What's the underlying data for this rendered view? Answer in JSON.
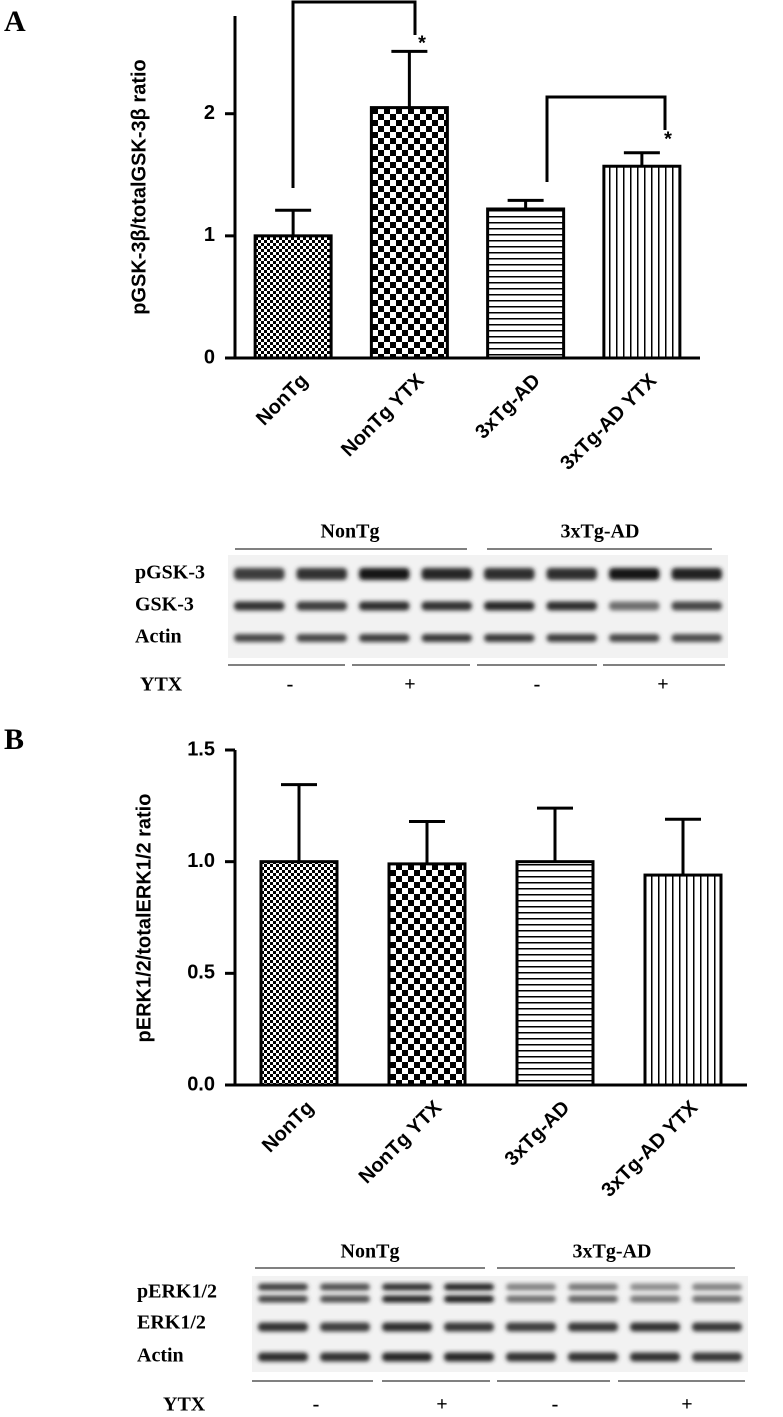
{
  "panels": [
    "A",
    "B"
  ],
  "chart_data": [
    {
      "type": "bar",
      "y_label": "pGSK-3β/totalGSK-3β ratio",
      "categories": [
        "NonTg",
        "NonTg YTX",
        "3xTg-AD",
        "3xTg-AD YTX"
      ],
      "values": [
        1.0,
        2.05,
        1.22,
        1.57
      ],
      "errors": [
        0.21,
        0.46,
        0.07,
        0.11
      ],
      "patterns": [
        "fine-checker",
        "checker",
        "horizontal-lines",
        "vertical-lines"
      ],
      "ylim": [
        0,
        2.8
      ],
      "yticks": [
        0,
        1,
        2
      ],
      "annotations": [
        "*",
        "*"
      ]
    },
    {
      "type": "bar",
      "y_label": "pERK1/2/totalERK1/2 ratio",
      "categories": [
        "NonTg",
        "NonTg YTX",
        "3xTg-AD",
        "3xTg-AD YTX"
      ],
      "values": [
        1.0,
        0.99,
        1.0,
        0.94
      ],
      "errors": [
        0.345,
        0.19,
        0.24,
        0.25
      ],
      "patterns": [
        "fine-checker",
        "checker",
        "horizontal-lines",
        "vertical-lines"
      ],
      "ylim": [
        0,
        1.5
      ],
      "yticks": [
        {
          "value": 0,
          "label": "0.0"
        },
        {
          "value": 0.5,
          "label": "0.5"
        },
        {
          "value": 1,
          "label": "1.0"
        },
        {
          "value": 1.5,
          "label": "1.5"
        }
      ]
    }
  ],
  "blots": [
    {
      "groups": [
        "NonTg",
        "3xTg-AD"
      ],
      "rows": [
        "pGSK-3",
        "GSK-3",
        "Actin"
      ],
      "treatment_label": "YTX",
      "treatments": [
        "-",
        "+",
        "-",
        "+"
      ]
    },
    {
      "groups": [
        "NonTg",
        "3xTg-AD"
      ],
      "rows": [
        "pERK1/2",
        "ERK1/2",
        "Actin"
      ],
      "treatment_label": "YTX",
      "treatments": [
        "-",
        "+",
        "-",
        "+"
      ]
    }
  ]
}
